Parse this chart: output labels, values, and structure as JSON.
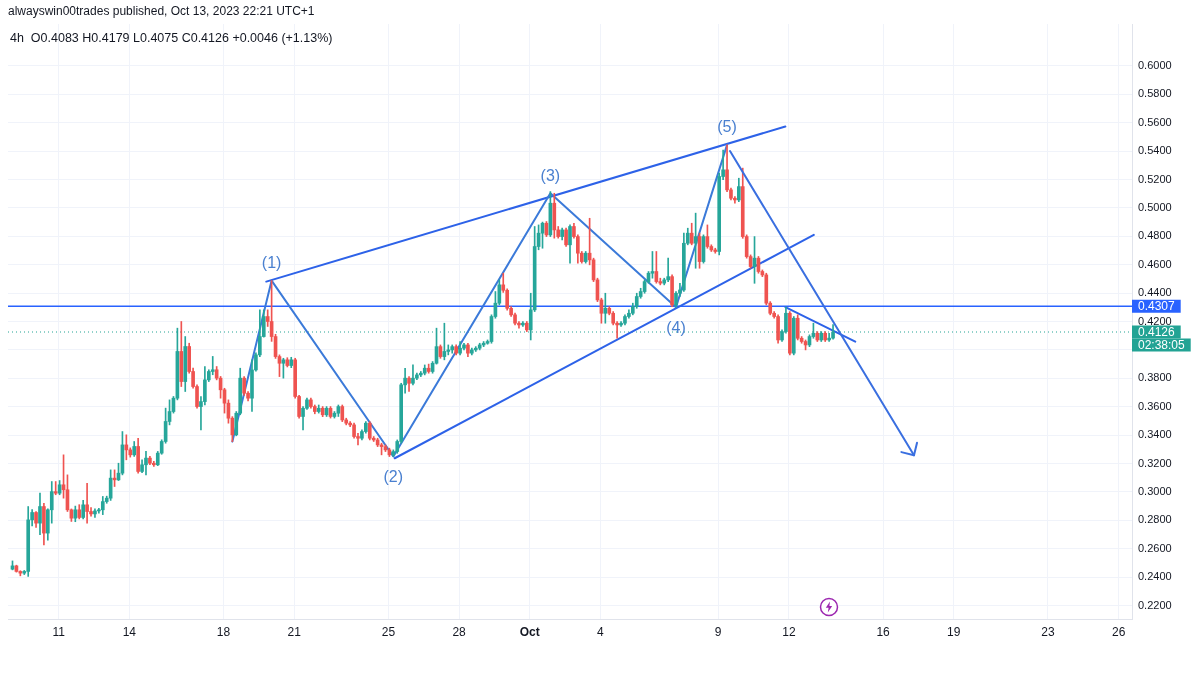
{
  "chart_data": {
    "type": "candlestick",
    "title": "alwayswin00trades published, Oct 13, 2023 22:21 UTC+1",
    "subtitle": "4h  O0.4083 H0.4179 L0.4075 C0.4126 +0.0046 (+1.13%)",
    "xlim": [
      "2023-09-08T20:25",
      "2023-10-26T13:35"
    ],
    "xticks": [
      {
        "value": "2023-09-11",
        "label": "11"
      },
      {
        "value": "2023-09-14",
        "label": "14"
      },
      {
        "value": "2023-09-18",
        "label": "18"
      },
      {
        "value": "2023-09-21",
        "label": "21"
      },
      {
        "value": "2023-09-25",
        "label": "25"
      },
      {
        "value": "2023-09-28",
        "label": "28"
      },
      {
        "value": "2023-10-01",
        "label": "Oct"
      },
      {
        "value": "2023-10-04",
        "label": "4"
      },
      {
        "value": "2023-10-09",
        "label": "9"
      },
      {
        "value": "2023-10-12",
        "label": "12"
      },
      {
        "value": "2023-10-16",
        "label": "16"
      },
      {
        "value": "2023-10-19",
        "label": "19"
      },
      {
        "value": "2023-10-23",
        "label": "23"
      },
      {
        "value": "2023-10-26",
        "label": "26"
      }
    ],
    "ylim": [
      0.2105,
      0.6295
    ],
    "yticks": [
      {
        "value": 0.22,
        "label": "0.2200"
      },
      {
        "value": 0.24,
        "label": "0.2400"
      },
      {
        "value": 0.26,
        "label": "0.2600"
      },
      {
        "value": 0.28,
        "label": "0.2800"
      },
      {
        "value": 0.3,
        "label": "0.3000"
      },
      {
        "value": 0.32,
        "label": "0.3200"
      },
      {
        "value": 0.34,
        "label": "0.3400"
      },
      {
        "value": 0.36,
        "label": "0.3600"
      },
      {
        "value": 0.38,
        "label": "0.3800"
      },
      {
        "value": 0.4,
        "label": null
      },
      {
        "value": 0.42,
        "label": "0.4200"
      },
      {
        "value": 0.44,
        "label": "0.4400"
      },
      {
        "value": 0.46,
        "label": "0.4600"
      },
      {
        "value": 0.48,
        "label": "0.4800"
      },
      {
        "value": 0.5,
        "label": "0.5000"
      },
      {
        "value": 0.52,
        "label": "0.5200"
      },
      {
        "value": 0.54,
        "label": "0.5400"
      },
      {
        "value": 0.56,
        "label": "0.5600"
      },
      {
        "value": 0.58,
        "label": "0.5800"
      },
      {
        "value": 0.6,
        "label": "0.6000"
      }
    ],
    "grid": true,
    "series": [
      {
        "x": [
          "2023-09-09T01:00",
          "2023-09-09T05:00",
          "2023-09-09T09:00",
          "2023-09-09T13:00",
          "2023-09-09T17:00",
          "2023-09-09T21:00",
          "2023-09-10T01:00",
          "2023-09-10T05:00",
          "2023-09-10T09:00",
          "2023-09-10T13:00",
          "2023-09-10T17:00",
          "2023-09-10T21:00",
          "2023-09-11T01:00",
          "2023-09-11T05:00",
          "2023-09-11T09:00",
          "2023-09-11T13:00",
          "2023-09-11T17:00",
          "2023-09-11T21:00",
          "2023-09-12T01:00",
          "2023-09-12T05:00",
          "2023-09-12T09:00",
          "2023-09-12T13:00",
          "2023-09-12T17:00",
          "2023-09-12T21:00",
          "2023-09-13T01:00",
          "2023-09-13T05:00",
          "2023-09-13T09:00",
          "2023-09-13T13:00",
          "2023-09-13T17:00",
          "2023-09-13T21:00",
          "2023-09-14T01:00",
          "2023-09-14T05:00",
          "2023-09-14T09:00",
          "2023-09-14T13:00",
          "2023-09-14T17:00",
          "2023-09-14T21:00",
          "2023-09-15T01:00",
          "2023-09-15T05:00",
          "2023-09-15T09:00",
          "2023-09-15T13:00",
          "2023-09-15T17:00",
          "2023-09-15T21:00",
          "2023-09-16T01:00",
          "2023-09-16T05:00",
          "2023-09-16T09:00",
          "2023-09-16T13:00",
          "2023-09-16T17:00",
          "2023-09-16T21:00",
          "2023-09-17T01:00",
          "2023-09-17T05:00",
          "2023-09-17T09:00",
          "2023-09-17T13:00",
          "2023-09-17T17:00",
          "2023-09-17T21:00",
          "2023-09-18T01:00",
          "2023-09-18T05:00",
          "2023-09-18T09:00",
          "2023-09-18T13:00",
          "2023-09-18T17:00",
          "2023-09-18T21:00",
          "2023-09-19T01:00",
          "2023-09-19T05:00",
          "2023-09-19T09:00",
          "2023-09-19T13:00",
          "2023-09-19T17:00",
          "2023-09-19T21:00",
          "2023-09-20T01:00",
          "2023-09-20T05:00",
          "2023-09-20T09:00",
          "2023-09-20T13:00",
          "2023-09-20T17:00",
          "2023-09-20T21:00",
          "2023-09-21T01:00",
          "2023-09-21T05:00",
          "2023-09-21T09:00",
          "2023-09-21T13:00",
          "2023-09-21T17:00",
          "2023-09-21T21:00",
          "2023-09-22T01:00",
          "2023-09-22T05:00",
          "2023-09-22T09:00",
          "2023-09-22T13:00",
          "2023-09-22T17:00",
          "2023-09-22T21:00",
          "2023-09-23T01:00",
          "2023-09-23T05:00",
          "2023-09-23T09:00",
          "2023-09-23T13:00",
          "2023-09-23T17:00",
          "2023-09-23T21:00",
          "2023-09-24T01:00",
          "2023-09-24T05:00",
          "2023-09-24T09:00",
          "2023-09-24T13:00",
          "2023-09-24T17:00",
          "2023-09-24T21:00",
          "2023-09-25T01:00",
          "2023-09-25T05:00",
          "2023-09-25T09:00",
          "2023-09-25T13:00",
          "2023-09-25T17:00",
          "2023-09-25T21:00",
          "2023-09-26T01:00",
          "2023-09-26T05:00",
          "2023-09-26T09:00",
          "2023-09-26T13:00",
          "2023-09-26T17:00",
          "2023-09-26T21:00",
          "2023-09-27T01:00",
          "2023-09-27T05:00",
          "2023-09-27T09:00",
          "2023-09-27T13:00",
          "2023-09-27T17:00",
          "2023-09-27T21:00",
          "2023-09-28T01:00",
          "2023-09-28T05:00",
          "2023-09-28T09:00",
          "2023-09-28T13:00",
          "2023-09-28T17:00",
          "2023-09-28T21:00",
          "2023-09-29T01:00",
          "2023-09-29T05:00",
          "2023-09-29T09:00",
          "2023-09-29T13:00",
          "2023-09-29T17:00",
          "2023-09-29T21:00",
          "2023-09-30T01:00",
          "2023-09-30T05:00",
          "2023-09-30T09:00",
          "2023-09-30T13:00",
          "2023-09-30T17:00",
          "2023-09-30T21:00",
          "2023-10-01T01:00",
          "2023-10-01T05:00",
          "2023-10-01T09:00",
          "2023-10-01T13:00",
          "2023-10-01T17:00",
          "2023-10-01T21:00",
          "2023-10-02T01:00",
          "2023-10-02T05:00",
          "2023-10-02T09:00",
          "2023-10-02T13:00",
          "2023-10-02T17:00",
          "2023-10-02T21:00",
          "2023-10-03T01:00",
          "2023-10-03T05:00",
          "2023-10-03T09:00",
          "2023-10-03T13:00",
          "2023-10-03T17:00",
          "2023-10-03T21:00",
          "2023-10-04T01:00",
          "2023-10-04T05:00",
          "2023-10-04T09:00",
          "2023-10-04T13:00",
          "2023-10-04T17:00",
          "2023-10-04T21:00",
          "2023-10-05T01:00",
          "2023-10-05T05:00",
          "2023-10-05T09:00",
          "2023-10-05T13:00",
          "2023-10-05T17:00",
          "2023-10-05T21:00",
          "2023-10-06T01:00",
          "2023-10-06T05:00",
          "2023-10-06T09:00",
          "2023-10-06T13:00",
          "2023-10-06T17:00",
          "2023-10-06T21:00",
          "2023-10-07T01:00",
          "2023-10-07T05:00",
          "2023-10-07T09:00",
          "2023-10-07T13:00",
          "2023-10-07T17:00",
          "2023-10-07T21:00",
          "2023-10-08T01:00",
          "2023-10-08T05:00",
          "2023-10-08T09:00",
          "2023-10-08T13:00",
          "2023-10-08T17:00",
          "2023-10-08T21:00",
          "2023-10-09T01:00",
          "2023-10-09T05:00",
          "2023-10-09T09:00",
          "2023-10-09T13:00",
          "2023-10-09T17:00",
          "2023-10-09T21:00",
          "2023-10-10T01:00",
          "2023-10-10T05:00",
          "2023-10-10T09:00",
          "2023-10-10T13:00",
          "2023-10-10T17:00",
          "2023-10-10T21:00",
          "2023-10-11T01:00",
          "2023-10-11T05:00",
          "2023-10-11T09:00",
          "2023-10-11T13:00",
          "2023-10-11T17:00",
          "2023-10-11T21:00",
          "2023-10-12T01:00",
          "2023-10-12T05:00",
          "2023-10-12T09:00",
          "2023-10-12T13:00",
          "2023-10-12T17:00",
          "2023-10-12T21:00",
          "2023-10-13T01:00",
          "2023-10-13T05:00",
          "2023-10-13T09:00",
          "2023-10-13T13:00",
          "2023-10-13T17:00",
          "2023-10-13T21:00"
        ],
        "ohlc": [
          [
            0.2456,
            0.2514,
            0.2451,
            0.2479
          ],
          [
            0.2479,
            0.2484,
            0.2435,
            0.244
          ],
          [
            0.244,
            0.2445,
            0.2409,
            0.2428
          ],
          [
            0.2428,
            0.2447,
            0.2418,
            0.244
          ],
          [
            0.244,
            0.2897,
            0.2405,
            0.2803
          ],
          [
            0.2803,
            0.2875,
            0.276,
            0.2855
          ],
          [
            0.2855,
            0.2862,
            0.275,
            0.278
          ],
          [
            0.278,
            0.2991,
            0.2698,
            0.2897
          ],
          [
            0.2897,
            0.292,
            0.2627,
            0.271
          ],
          [
            0.271,
            0.288,
            0.266,
            0.2874
          ],
          [
            0.2874,
            0.3073,
            0.278,
            0.3002
          ],
          [
            0.3002,
            0.3073,
            0.298,
            0.2991
          ],
          [
            0.2991,
            0.308,
            0.298,
            0.305
          ],
          [
            0.305,
            0.3261,
            0.2956,
            0.3015
          ],
          [
            0.3015,
            0.312,
            0.2862,
            0.2874
          ],
          [
            0.2874,
            0.288,
            0.2792,
            0.2815
          ],
          [
            0.2815,
            0.29,
            0.279,
            0.2874
          ],
          [
            0.2874,
            0.291,
            0.281,
            0.282
          ],
          [
            0.282,
            0.294,
            0.281,
            0.2909
          ],
          [
            0.2909,
            0.3061,
            0.278,
            0.2862
          ],
          [
            0.2862,
            0.289,
            0.283,
            0.2845
          ],
          [
            0.2845,
            0.288,
            0.282,
            0.2866
          ],
          [
            0.2866,
            0.2885,
            0.285,
            0.2874
          ],
          [
            0.2874,
            0.2968,
            0.284,
            0.2932
          ],
          [
            0.2932,
            0.297,
            0.292,
            0.2956
          ],
          [
            0.2956,
            0.3155,
            0.294,
            0.3097
          ],
          [
            0.3097,
            0.3155,
            0.3038,
            0.3085
          ],
          [
            0.3085,
            0.3202,
            0.308,
            0.3132
          ],
          [
            0.3132,
            0.3425,
            0.312,
            0.3331
          ],
          [
            0.3331,
            0.3402,
            0.3226,
            0.3296
          ],
          [
            0.3296,
            0.331,
            0.3245,
            0.3261
          ],
          [
            0.3261,
            0.3355,
            0.325,
            0.332
          ],
          [
            0.332,
            0.3378,
            0.3132,
            0.3144
          ],
          [
            0.3144,
            0.3226,
            0.3135,
            0.3191
          ],
          [
            0.3191,
            0.3285,
            0.312,
            0.3238
          ],
          [
            0.3238,
            0.325,
            0.3191,
            0.3202
          ],
          [
            0.3202,
            0.3215,
            0.318,
            0.3191
          ],
          [
            0.3191,
            0.3285,
            0.3185,
            0.3273
          ],
          [
            0.3273,
            0.3367,
            0.3265,
            0.3355
          ],
          [
            0.3355,
            0.359,
            0.3343,
            0.3496
          ],
          [
            0.3496,
            0.3648,
            0.3472,
            0.3566
          ],
          [
            0.3566,
            0.3672,
            0.3555,
            0.366
          ],
          [
            0.366,
            0.4153,
            0.3648,
            0.3989
          ],
          [
            0.3989,
            0.42,
            0.3742,
            0.3777
          ],
          [
            0.3777,
            0.4094,
            0.3707,
            0.4024
          ],
          [
            0.4024,
            0.4047,
            0.3836,
            0.3848
          ],
          [
            0.3848,
            0.3872,
            0.373,
            0.3742
          ],
          [
            0.3742,
            0.3754,
            0.359,
            0.3601
          ],
          [
            0.3601,
            0.3672,
            0.3437,
            0.3636
          ],
          [
            0.3636,
            0.3883,
            0.3613,
            0.3789
          ],
          [
            0.3789,
            0.386,
            0.3777,
            0.3848
          ],
          [
            0.3848,
            0.3954,
            0.3825,
            0.386
          ],
          [
            0.386,
            0.3883,
            0.3789,
            0.3801
          ],
          [
            0.3801,
            0.3813,
            0.366,
            0.3719
          ],
          [
            0.3719,
            0.373,
            0.3555,
            0.3625
          ],
          [
            0.3625,
            0.3648,
            0.3484,
            0.3519
          ],
          [
            0.3519,
            0.353,
            0.3354,
            0.3402
          ],
          [
            0.3402,
            0.3566,
            0.3395,
            0.3554
          ],
          [
            0.3554,
            0.3871,
            0.3543,
            0.3801
          ],
          [
            0.3801,
            0.3812,
            0.368,
            0.3695
          ],
          [
            0.3695,
            0.3707,
            0.364,
            0.366
          ],
          [
            0.366,
            0.393,
            0.3566,
            0.3859
          ],
          [
            0.3859,
            0.398,
            0.385,
            0.3965
          ],
          [
            0.3965,
            0.4282,
            0.3953,
            0.4094
          ],
          [
            0.4094,
            0.4282,
            0.409,
            0.4235
          ],
          [
            0.4235,
            0.4282,
            0.4165,
            0.42
          ],
          [
            0.42,
            0.4488,
            0.406,
            0.4094
          ],
          [
            0.4094,
            0.411,
            0.394,
            0.3953
          ],
          [
            0.3953,
            0.3965,
            0.3812,
            0.3906
          ],
          [
            0.3906,
            0.3941,
            0.3801,
            0.393
          ],
          [
            0.393,
            0.3945,
            0.388,
            0.389
          ],
          [
            0.389,
            0.3948,
            0.3875,
            0.393
          ],
          [
            0.393,
            0.3941,
            0.366,
            0.3672
          ],
          [
            0.3672,
            0.368,
            0.352,
            0.3531
          ],
          [
            0.3531,
            0.36,
            0.3437,
            0.3589
          ],
          [
            0.3589,
            0.366,
            0.358,
            0.3648
          ],
          [
            0.3648,
            0.366,
            0.359,
            0.3601
          ],
          [
            0.3601,
            0.3612,
            0.355,
            0.3566
          ],
          [
            0.3566,
            0.3612,
            0.3555,
            0.3589
          ],
          [
            0.3589,
            0.3601,
            0.353,
            0.3543
          ],
          [
            0.3543,
            0.3601,
            0.3531,
            0.3589
          ],
          [
            0.3589,
            0.3601,
            0.352,
            0.3531
          ],
          [
            0.3531,
            0.3566,
            0.352,
            0.3554
          ],
          [
            0.3554,
            0.3612,
            0.3531,
            0.3601
          ],
          [
            0.3601,
            0.3612,
            0.3495,
            0.3507
          ],
          [
            0.3507,
            0.3519,
            0.3472,
            0.3484
          ],
          [
            0.3484,
            0.3495,
            0.346,
            0.3472
          ],
          [
            0.3472,
            0.3484,
            0.3378,
            0.339
          ],
          [
            0.339,
            0.3413,
            0.3331,
            0.3378
          ],
          [
            0.3378,
            0.3437,
            0.3366,
            0.3425
          ],
          [
            0.3425,
            0.3495,
            0.3413,
            0.3484
          ],
          [
            0.3484,
            0.3495,
            0.3366,
            0.3378
          ],
          [
            0.3378,
            0.339,
            0.3355,
            0.3366
          ],
          [
            0.3366,
            0.3378,
            0.3319,
            0.3331
          ],
          [
            0.3331,
            0.3343,
            0.3261,
            0.3319
          ],
          [
            0.3319,
            0.3331,
            0.3284,
            0.3296
          ],
          [
            0.3296,
            0.3308,
            0.3249,
            0.3261
          ],
          [
            0.3261,
            0.3296,
            0.3249,
            0.3284
          ],
          [
            0.3284,
            0.3366,
            0.3272,
            0.3355
          ],
          [
            0.3355,
            0.3765,
            0.3343,
            0.3754
          ],
          [
            0.3754,
            0.3871,
            0.3695,
            0.3801
          ],
          [
            0.3801,
            0.3812,
            0.3707,
            0.3765
          ],
          [
            0.3765,
            0.3894,
            0.3754,
            0.3801
          ],
          [
            0.3801,
            0.3836,
            0.379,
            0.3824
          ],
          [
            0.3824,
            0.3848,
            0.3812,
            0.3836
          ],
          [
            0.3836,
            0.3894,
            0.3824,
            0.3871
          ],
          [
            0.3871,
            0.39,
            0.3836,
            0.3848
          ],
          [
            0.3848,
            0.3918,
            0.3836,
            0.3906
          ],
          [
            0.3906,
            0.4153,
            0.39,
            0.4023
          ],
          [
            0.4023,
            0.4035,
            0.3941,
            0.3953
          ],
          [
            0.3953,
            0.4188,
            0.393,
            0.3989
          ],
          [
            0.3989,
            0.4035,
            0.3965,
            0.4
          ],
          [
            0.4,
            0.4035,
            0.3977,
            0.4023
          ],
          [
            0.4023,
            0.4035,
            0.3965,
            0.3977
          ],
          [
            0.3977,
            0.4059,
            0.3965,
            0.4012
          ],
          [
            0.4012,
            0.4047,
            0.4,
            0.4035
          ],
          [
            0.4035,
            0.4047,
            0.3953,
            0.3977
          ],
          [
            0.3977,
            0.4012,
            0.3965,
            0.4
          ],
          [
            0.4,
            0.4023,
            0.3989,
            0.4012
          ],
          [
            0.4012,
            0.4047,
            0.4,
            0.4035
          ],
          [
            0.4035,
            0.4059,
            0.4023,
            0.4047
          ],
          [
            0.4047,
            0.407,
            0.404,
            0.4059
          ],
          [
            0.4059,
            0.4247,
            0.4047,
            0.4235
          ],
          [
            0.4235,
            0.4411,
            0.4223,
            0.4329
          ],
          [
            0.4329,
            0.4493,
            0.4317,
            0.4458
          ],
          [
            0.4458,
            0.454,
            0.4405,
            0.442
          ],
          [
            0.442,
            0.443,
            0.428,
            0.4293
          ],
          [
            0.4293,
            0.4305,
            0.4235,
            0.4247
          ],
          [
            0.4247,
            0.4259,
            0.4176,
            0.4188
          ],
          [
            0.4188,
            0.42,
            0.4153,
            0.4176
          ],
          [
            0.4176,
            0.42,
            0.4165,
            0.4188
          ],
          [
            0.4188,
            0.42,
            0.4129,
            0.4141
          ],
          [
            0.4141,
            0.4399,
            0.407,
            0.4282
          ],
          [
            0.4282,
            0.4869,
            0.427,
            0.4728
          ],
          [
            0.4728,
            0.488,
            0.4705,
            0.4822
          ],
          [
            0.4822,
            0.49,
            0.4716,
            0.4892
          ],
          [
            0.4892,
            0.4904,
            0.4798,
            0.481
          ],
          [
            0.481,
            0.5115,
            0.4798,
            0.5033
          ],
          [
            0.5033,
            0.5103,
            0.4787,
            0.4845
          ],
          [
            0.4845,
            0.4869,
            0.4787,
            0.4798
          ],
          [
            0.4798,
            0.4857,
            0.4775,
            0.4845
          ],
          [
            0.4845,
            0.4857,
            0.4728,
            0.474
          ],
          [
            0.474,
            0.488,
            0.4611,
            0.4869
          ],
          [
            0.4869,
            0.4892,
            0.4787,
            0.4798
          ],
          [
            0.4798,
            0.481,
            0.4611,
            0.4681
          ],
          [
            0.4681,
            0.4693,
            0.4611,
            0.4622
          ],
          [
            0.4622,
            0.4693,
            0.4611,
            0.4681
          ],
          [
            0.4681,
            0.4927,
            0.4599,
            0.4634
          ],
          [
            0.4634,
            0.4646,
            0.4481,
            0.4493
          ],
          [
            0.4493,
            0.4505,
            0.434,
            0.4352
          ],
          [
            0.4352,
            0.4364,
            0.4188,
            0.4258
          ],
          [
            0.4258,
            0.4399,
            0.4188,
            0.4293
          ],
          [
            0.4293,
            0.4305,
            0.4247,
            0.4258
          ],
          [
            0.4258,
            0.427,
            0.4176,
            0.4188
          ],
          [
            0.4188,
            0.42,
            0.4082,
            0.4176
          ],
          [
            0.4176,
            0.42,
            0.4165,
            0.4188
          ],
          [
            0.4188,
            0.4247,
            0.4176,
            0.4235
          ],
          [
            0.4235,
            0.4282,
            0.4223,
            0.4258
          ],
          [
            0.4258,
            0.4329,
            0.4247,
            0.4305
          ],
          [
            0.4305,
            0.4399,
            0.4293,
            0.4376
          ],
          [
            0.4376,
            0.4434,
            0.4364,
            0.4411
          ],
          [
            0.4411,
            0.4493,
            0.4399,
            0.4481
          ],
          [
            0.4481,
            0.4552,
            0.447,
            0.454
          ],
          [
            0.454,
            0.4693,
            0.4505,
            0.4552
          ],
          [
            0.4552,
            0.4693,
            0.447,
            0.4481
          ],
          [
            0.4481,
            0.4505,
            0.4458,
            0.447
          ],
          [
            0.447,
            0.4505,
            0.4458,
            0.4493
          ],
          [
            0.4493,
            0.4646,
            0.4481,
            0.4516
          ],
          [
            0.4516,
            0.4528,
            0.4305,
            0.4317
          ],
          [
            0.4317,
            0.4411,
            0.4301,
            0.4399
          ],
          [
            0.4399,
            0.4469,
            0.4376,
            0.4422
          ],
          [
            0.4422,
            0.4822,
            0.4411,
            0.4751
          ],
          [
            0.4751,
            0.4857,
            0.474,
            0.4822
          ],
          [
            0.4822,
            0.4892,
            0.474,
            0.4751
          ],
          [
            0.4751,
            0.4963,
            0.4575,
            0.4798
          ],
          [
            0.4798,
            0.4822,
            0.4575,
            0.4622
          ],
          [
            0.4622,
            0.481,
            0.4611,
            0.4798
          ],
          [
            0.4798,
            0.488,
            0.4716,
            0.4728
          ],
          [
            0.4728,
            0.474,
            0.4693,
            0.4704
          ],
          [
            0.4704,
            0.4716,
            0.4681,
            0.4693
          ],
          [
            0.4693,
            0.5245,
            0.4669,
            0.5221
          ],
          [
            0.5221,
            0.5408,
            0.5198,
            0.5268
          ],
          [
            0.5268,
            0.5444,
            0.5115,
            0.5127
          ],
          [
            0.5127,
            0.5139,
            0.5056,
            0.5068
          ],
          [
            0.5068,
            0.508,
            0.5033,
            0.5056
          ],
          [
            0.5056,
            0.5209,
            0.5044,
            0.515
          ],
          [
            0.515,
            0.528,
            0.4786,
            0.4798
          ],
          [
            0.4798,
            0.481,
            0.4646,
            0.4657
          ],
          [
            0.4657,
            0.4669,
            0.4575,
            0.4587
          ],
          [
            0.4587,
            0.4798,
            0.4469,
            0.4646
          ],
          [
            0.4646,
            0.4658,
            0.454,
            0.4552
          ],
          [
            0.4552,
            0.4563,
            0.4516,
            0.4528
          ],
          [
            0.4528,
            0.454,
            0.4317,
            0.4329
          ],
          [
            0.4329,
            0.434,
            0.4247,
            0.4258
          ],
          [
            0.4258,
            0.427,
            0.4223,
            0.4235
          ],
          [
            0.4235,
            0.4247,
            0.4047,
            0.407
          ],
          [
            0.407,
            0.4141,
            0.4059,
            0.4129
          ],
          [
            0.4129,
            0.4301,
            0.4117,
            0.4258
          ],
          [
            0.4258,
            0.427,
            0.3965,
            0.3977
          ],
          [
            0.3977,
            0.4235,
            0.3965,
            0.4223
          ],
          [
            0.4223,
            0.4247,
            0.407,
            0.4082
          ],
          [
            0.4082,
            0.4094,
            0.4047,
            0.4059
          ],
          [
            0.4059,
            0.407,
            0.4,
            0.4035
          ],
          [
            0.4035,
            0.4106,
            0.4023,
            0.4094
          ],
          [
            0.4094,
            0.4188,
            0.4082,
            0.4117
          ],
          [
            0.4117,
            0.4129,
            0.4059,
            0.407
          ],
          [
            0.407,
            0.4129,
            0.4059,
            0.4117
          ],
          [
            0.4117,
            0.4129,
            0.4059,
            0.407
          ],
          [
            0.407,
            0.4117,
            0.4059,
            0.4083
          ],
          [
            0.4083,
            0.4179,
            0.4075,
            0.4126
          ]
        ],
        "colors": [
          "#26a69a",
          "#ef5350",
          "#ef5350",
          "#26a69a",
          "#26a69a",
          "#26a69a",
          "#ef5350",
          "#26a69a",
          "#ef5350",
          "#26a69a",
          "#26a69a",
          "#ef5350",
          "#26a69a",
          "#ef5350",
          "#ef5350",
          "#ef5350",
          "#26a69a",
          "#ef5350",
          "#26a69a",
          "#ef5350",
          "#ef5350",
          "#26a69a",
          "#26a69a",
          "#26a69a",
          "#26a69a",
          "#26a69a",
          "#ef5350",
          "#26a69a",
          "#26a69a",
          "#ef5350",
          "#ef5350",
          "#26a69a",
          "#ef5350",
          "#26a69a",
          "#26a69a",
          "#ef5350",
          "#ef5350",
          "#26a69a",
          "#26a69a",
          "#26a69a",
          "#26a69a",
          "#26a69a",
          "#26a69a",
          "#ef5350",
          "#26a69a",
          "#ef5350",
          "#ef5350",
          "#ef5350",
          "#26a69a",
          "#26a69a",
          "#26a69a",
          "#26a69a",
          "#ef5350",
          "#ef5350",
          "#ef5350",
          "#ef5350",
          "#ef5350",
          "#26a69a",
          "#26a69a",
          "#ef5350",
          "#ef5350",
          "#26a69a",
          "#26a69a",
          "#26a69a",
          "#26a69a",
          "#ef5350",
          "#ef5350",
          "#ef5350",
          "#ef5350",
          "#26a69a",
          "#ef5350",
          "#26a69a",
          "#ef5350",
          "#ef5350",
          "#26a69a",
          "#26a69a",
          "#ef5350",
          "#ef5350",
          "#26a69a",
          "#ef5350",
          "#26a69a",
          "#ef5350",
          "#26a69a",
          "#26a69a",
          "#ef5350",
          "#ef5350",
          "#ef5350",
          "#ef5350",
          "#ef5350",
          "#26a69a",
          "#26a69a",
          "#ef5350",
          "#ef5350",
          "#ef5350",
          "#ef5350",
          "#ef5350",
          "#ef5350",
          "#26a69a",
          "#26a69a",
          "#26a69a",
          "#26a69a",
          "#ef5350",
          "#26a69a",
          "#26a69a",
          "#26a69a",
          "#26a69a",
          "#ef5350",
          "#26a69a",
          "#26a69a",
          "#ef5350",
          "#26a69a",
          "#26a69a",
          "#26a69a",
          "#ef5350",
          "#26a69a",
          "#26a69a",
          "#ef5350",
          "#26a69a",
          "#26a69a",
          "#26a69a",
          "#26a69a",
          "#26a69a",
          "#26a69a",
          "#26a69a",
          "#26a69a",
          "#ef5350",
          "#ef5350",
          "#ef5350",
          "#ef5350",
          "#ef5350",
          "#26a69a",
          "#ef5350",
          "#26a69a",
          "#26a69a",
          "#26a69a",
          "#26a69a",
          "#ef5350",
          "#26a69a",
          "#ef5350",
          "#ef5350",
          "#26a69a",
          "#ef5350",
          "#26a69a",
          "#ef5350",
          "#ef5350",
          "#ef5350",
          "#26a69a",
          "#ef5350",
          "#ef5350",
          "#ef5350",
          "#ef5350",
          "#26a69a",
          "#ef5350",
          "#ef5350",
          "#ef5350",
          "#26a69a",
          "#26a69a",
          "#26a69a",
          "#26a69a",
          "#26a69a",
          "#26a69a",
          "#26a69a",
          "#26a69a",
          "#26a69a",
          "#ef5350",
          "#ef5350",
          "#26a69a",
          "#26a69a",
          "#ef5350",
          "#26a69a",
          "#26a69a",
          "#26a69a",
          "#26a69a",
          "#ef5350",
          "#26a69a",
          "#ef5350",
          "#26a69a",
          "#ef5350",
          "#ef5350",
          "#ef5350",
          "#26a69a",
          "#26a69a",
          "#ef5350",
          "#ef5350",
          "#ef5350",
          "#26a69a",
          "#ef5350",
          "#ef5350",
          "#ef5350",
          "#26a69a",
          "#ef5350",
          "#ef5350",
          "#ef5350",
          "#ef5350",
          "#ef5350",
          "#ef5350",
          "#26a69a",
          "#26a69a",
          "#ef5350",
          "#26a69a",
          "#ef5350",
          "#ef5350",
          "#ef5350",
          "#26a69a",
          "#26a69a",
          "#ef5350",
          "#26a69a",
          "#ef5350",
          "#26a69a",
          "#26a69a"
        ]
      },
      {
        "type": "line",
        "color": "#3b7ad9",
        "x": [
          "2023-09-18T09:00",
          "2023-09-20T01:00",
          "2023-09-25T05:00",
          "2023-10-01T21:00",
          "2023-10-07T05:00",
          "2023-10-09T09:00"
        ],
        "values": [
          0.3354,
          0.4488,
          0.3249,
          0.5103,
          0.4301,
          0.5444
        ]
      },
      {
        "type": "line",
        "color": "#2d62e8",
        "x": [
          "2023-09-19T19:35",
          "2023-10-11T20:25"
        ],
        "values": [
          0.4481,
          0.5573
        ]
      },
      {
        "type": "line",
        "color": "#2d62e8",
        "x": [
          "2023-09-25T06:25",
          "2023-10-13T01:25"
        ],
        "values": [
          0.3237,
          0.481
        ]
      },
      {
        "type": "line",
        "color": "#2d62e8",
        "x": [
          "2023-10-11T20:25",
          "2023-10-14T19:40"
        ],
        "values": [
          0.4301,
          0.4058
        ]
      }
    ],
    "ref_lines": [
      {
        "axis": "y",
        "value": 0.4307,
        "label": "0.4307",
        "color": "#2962ff"
      },
      {
        "axis": "y",
        "value": 0.4126,
        "label": "0.4126",
        "color": "#22a394",
        "line_style": "dotted"
      }
    ],
    "annotations": [
      {
        "text": "(1)",
        "x": "2023-09-20T01:00",
        "y": 0.4488
      },
      {
        "text": "(2)",
        "x": "2023-09-25T05:00",
        "y": 0.3249
      },
      {
        "text": "(3)",
        "x": "2023-10-01T21:00",
        "y": 0.5103
      },
      {
        "text": "(4)",
        "x": "2023-10-07T05:00",
        "y": 0.4301
      },
      {
        "text": "(5)",
        "x": "2023-10-09T09:00",
        "y": 0.5444
      },
      "02:38:05"
    ]
  }
}
